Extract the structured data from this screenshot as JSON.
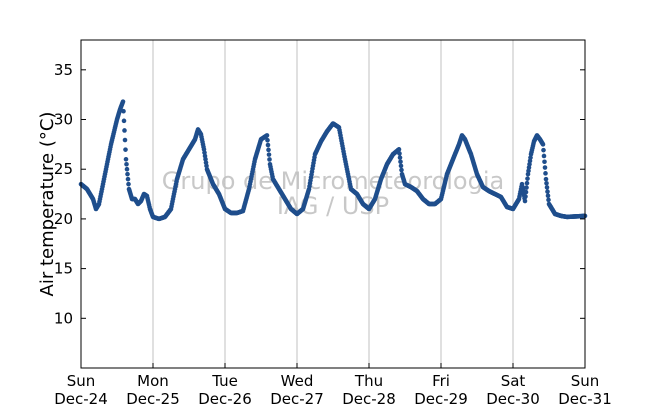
{
  "colors": {
    "series": "#1f4e8c",
    "grid": "#c0c0c0",
    "watermark": "#c8c8c8"
  },
  "watermark": {
    "line1": "Grupo de Micrometeorologia",
    "line2": "IAG / USP"
  },
  "chart_data": {
    "type": "scatter",
    "title": "",
    "xlabel": "",
    "ylabel": "Air temperature (°C)",
    "xlim": [
      "Dec-24 00:00",
      "Dec-31 00:00"
    ],
    "ylim": [
      5,
      38
    ],
    "grid": "vertical lines at each day",
    "yticks": [
      "10",
      "15",
      "20",
      "25",
      "30",
      "35"
    ],
    "xticks": [
      {
        "day": "Sun",
        "date": "Dec-24"
      },
      {
        "day": "Mon",
        "date": "Dec-25"
      },
      {
        "day": "Tue",
        "date": "Dec-26"
      },
      {
        "day": "Wed",
        "date": "Dec-27"
      },
      {
        "day": "Thu",
        "date": "Dec-28"
      },
      {
        "day": "Fri",
        "date": "Dec-29"
      },
      {
        "day": "Sat",
        "date": "Dec-30"
      },
      {
        "day": "Sun",
        "date": "Dec-31"
      }
    ],
    "series": [
      {
        "x_unit": "hours since Dec-24 00:00",
        "points": [
          [
            0,
            23.5
          ],
          [
            2,
            23.0
          ],
          [
            4,
            22.0
          ],
          [
            5,
            21.0
          ],
          [
            6,
            21.5
          ],
          [
            8,
            24.5
          ],
          [
            10,
            27.5
          ],
          [
            12,
            30.0
          ],
          [
            13,
            31.0
          ],
          [
            14,
            31.8
          ],
          [
            15,
            26.0
          ],
          [
            16,
            23.0
          ],
          [
            17,
            22.0
          ],
          [
            18,
            22.0
          ],
          [
            19,
            21.5
          ],
          [
            20,
            21.8
          ],
          [
            21,
            22.5
          ],
          [
            22,
            22.3
          ],
          [
            23,
            21.0
          ],
          [
            24,
            20.2
          ],
          [
            26,
            20.0
          ],
          [
            28,
            20.2
          ],
          [
            30,
            21.0
          ],
          [
            32,
            24.0
          ],
          [
            34,
            26.0
          ],
          [
            36,
            27.0
          ],
          [
            38,
            28.0
          ],
          [
            39,
            29.0
          ],
          [
            40,
            28.5
          ],
          [
            41,
            27.0
          ],
          [
            42,
            25.0
          ],
          [
            44,
            23.5
          ],
          [
            46,
            22.5
          ],
          [
            48,
            21.0
          ],
          [
            50,
            20.6
          ],
          [
            52,
            20.6
          ],
          [
            54,
            20.8
          ],
          [
            56,
            23.0
          ],
          [
            58,
            26.0
          ],
          [
            60,
            28.0
          ],
          [
            62,
            28.4
          ],
          [
            63,
            25.5
          ],
          [
            64,
            24.0
          ],
          [
            66,
            23.0
          ],
          [
            68,
            22.0
          ],
          [
            70,
            21.0
          ],
          [
            72,
            20.5
          ],
          [
            74,
            21.0
          ],
          [
            76,
            23.0
          ],
          [
            78,
            26.5
          ],
          [
            80,
            27.8
          ],
          [
            82,
            28.8
          ],
          [
            84,
            29.6
          ],
          [
            86,
            29.2
          ],
          [
            88,
            26.0
          ],
          [
            89,
            24.5
          ],
          [
            90,
            23.0
          ],
          [
            92,
            22.5
          ],
          [
            94,
            21.5
          ],
          [
            96,
            21.0
          ],
          [
            98,
            22.0
          ],
          [
            100,
            24.0
          ],
          [
            102,
            25.5
          ],
          [
            104,
            26.5
          ],
          [
            106,
            27.0
          ],
          [
            107,
            24.5
          ],
          [
            108,
            23.5
          ],
          [
            110,
            23.2
          ],
          [
            112,
            22.8
          ],
          [
            114,
            22.0
          ],
          [
            116,
            21.5
          ],
          [
            118,
            21.5
          ],
          [
            120,
            22.0
          ],
          [
            122,
            24.5
          ],
          [
            124,
            26.0
          ],
          [
            126,
            27.5
          ],
          [
            127,
            28.4
          ],
          [
            128,
            28.0
          ],
          [
            130,
            26.5
          ],
          [
            132,
            24.5
          ],
          [
            134,
            23.2
          ],
          [
            136,
            22.8
          ],
          [
            138,
            22.5
          ],
          [
            140,
            22.2
          ],
          [
            142,
            21.2
          ],
          [
            144,
            21.0
          ],
          [
            146,
            22.0
          ],
          [
            147,
            23.5
          ],
          [
            148,
            21.8
          ],
          [
            149,
            24.5
          ],
          [
            150,
            26.5
          ],
          [
            151,
            27.8
          ],
          [
            152,
            28.4
          ],
          [
            153,
            28.0
          ],
          [
            154,
            27.5
          ],
          [
            155,
            24.0
          ],
          [
            156,
            21.5
          ],
          [
            158,
            20.5
          ],
          [
            160,
            20.3
          ],
          [
            162,
            20.2
          ],
          [
            168,
            20.3
          ]
        ]
      }
    ]
  }
}
